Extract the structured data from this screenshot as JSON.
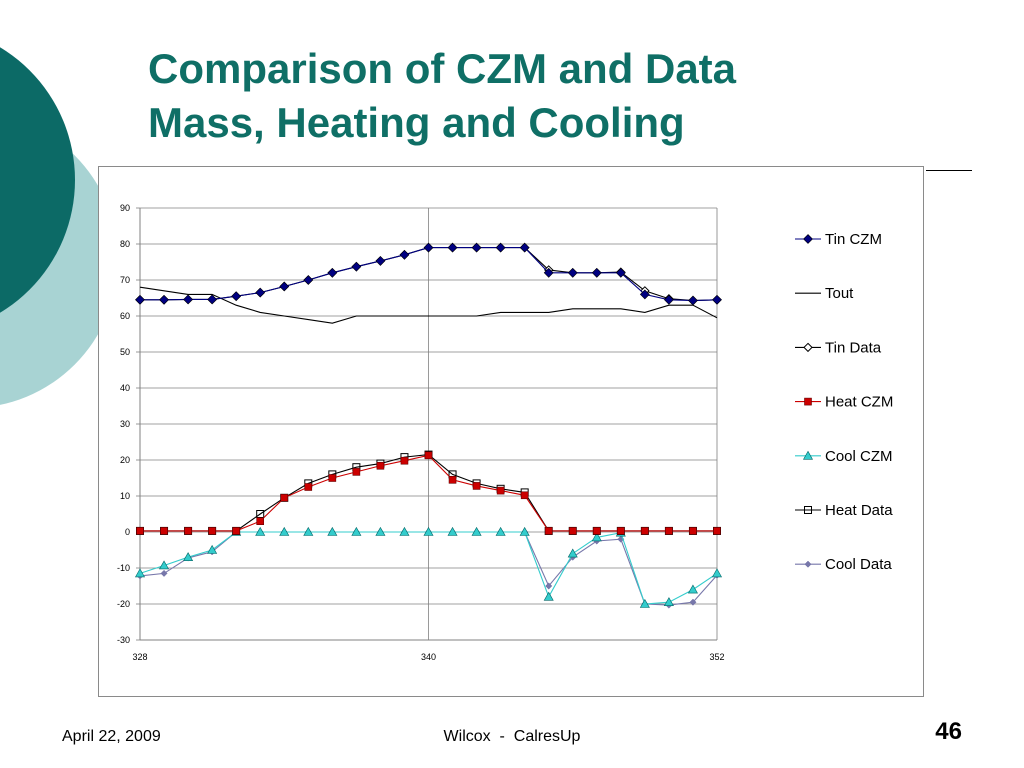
{
  "slide": {
    "title_line1": "Comparison of CZM and Data",
    "title_line2": "Mass, Heating and Cooling",
    "footer_date": "April 22, 2009",
    "footer_center": "Wilcox  -  CalresUp",
    "slide_number": "46",
    "accent_color": "#0f6f66",
    "decor_light_color": "#a8d3d3",
    "decor_dark_color": "#0c6a66"
  },
  "chart_data": {
    "type": "line",
    "title": "",
    "xlabel": "",
    "ylabel": "",
    "xlim": [
      328,
      352
    ],
    "ylim": [
      -30,
      90
    ],
    "x_ticks": [
      328,
      340,
      352
    ],
    "y_ticks": [
      -30,
      -20,
      -10,
      0,
      10,
      20,
      30,
      40,
      50,
      60,
      70,
      80,
      90
    ],
    "grid": "horizontal major gridlines, vertical gridline at 340",
    "legend_position": "right",
    "x": [
      328,
      329,
      330,
      331,
      332,
      333,
      334,
      335,
      336,
      337,
      338,
      339,
      340,
      341,
      342,
      343,
      344,
      345,
      346,
      347,
      348,
      349,
      350,
      351,
      352
    ],
    "series": [
      {
        "name": "Tin CZM",
        "color": "#000080",
        "marker": "diamond",
        "values": [
          64.5,
          64.5,
          64.6,
          64.6,
          65.5,
          66.5,
          68.2,
          70,
          72,
          73.7,
          75.3,
          77,
          79,
          79,
          79,
          79,
          79,
          72,
          72,
          72,
          72,
          66,
          64.5,
          64.3,
          64.5
        ]
      },
      {
        "name": "Tout",
        "color": "#000000",
        "marker": "none",
        "values": [
          68,
          67,
          66,
          66,
          63,
          61,
          60,
          59,
          58,
          60,
          60,
          60,
          60,
          60,
          60,
          61,
          61,
          61,
          62,
          62,
          62,
          61,
          63,
          63,
          59.5
        ]
      },
      {
        "name": "Tin Data",
        "color": "#000000",
        "marker": "open-diamond",
        "values": [
          64.5,
          64.5,
          64.6,
          64.6,
          65.5,
          66.5,
          68.2,
          70,
          72,
          73.7,
          75.3,
          77,
          79,
          79,
          79,
          79,
          79,
          72.8,
          72,
          72,
          72.2,
          67,
          64.8,
          64.3,
          64.5
        ]
      },
      {
        "name": "Heat CZM",
        "color": "#cc0000",
        "marker": "square",
        "values": [
          0.3,
          0.3,
          0.3,
          0.3,
          0.3,
          3,
          9.5,
          12.5,
          15,
          16.7,
          18.4,
          19.8,
          21.3,
          14.5,
          12.8,
          11.5,
          10.2,
          0.3,
          0.3,
          0.3,
          0.3,
          0.3,
          0.3,
          0.3,
          0.3
        ]
      },
      {
        "name": "Cool CZM",
        "color": "#33cccc",
        "marker": "triangle",
        "values": [
          -11.5,
          -9.3,
          -7,
          -5,
          0,
          0,
          0,
          0,
          0,
          0,
          0,
          0,
          0,
          0,
          0,
          0,
          0,
          -18,
          -6,
          -1.5,
          -0.2,
          -20,
          -19.5,
          -16,
          -11.5
        ]
      },
      {
        "name": "Heat Data",
        "color": "#000000",
        "marker": "open-square",
        "values": [
          0.3,
          0.3,
          0.3,
          0.3,
          0.3,
          5,
          9.5,
          13.5,
          16,
          18,
          19,
          20.8,
          21.5,
          16,
          13.5,
          12,
          11,
          0.3,
          0.3,
          0.3,
          0.3,
          0.3,
          0.3,
          0.3,
          0.3
        ]
      },
      {
        "name": "Cool Data",
        "color": "#7777aa",
        "marker": "small-diamond",
        "values": [
          -12.2,
          -11.5,
          -7.2,
          -5.5,
          0,
          0,
          0,
          0,
          0,
          0,
          0,
          0,
          0,
          0,
          0,
          0,
          0,
          -15,
          -7,
          -2.5,
          -2,
          -20,
          -20.3,
          -19.5,
          -12
        ]
      }
    ]
  }
}
